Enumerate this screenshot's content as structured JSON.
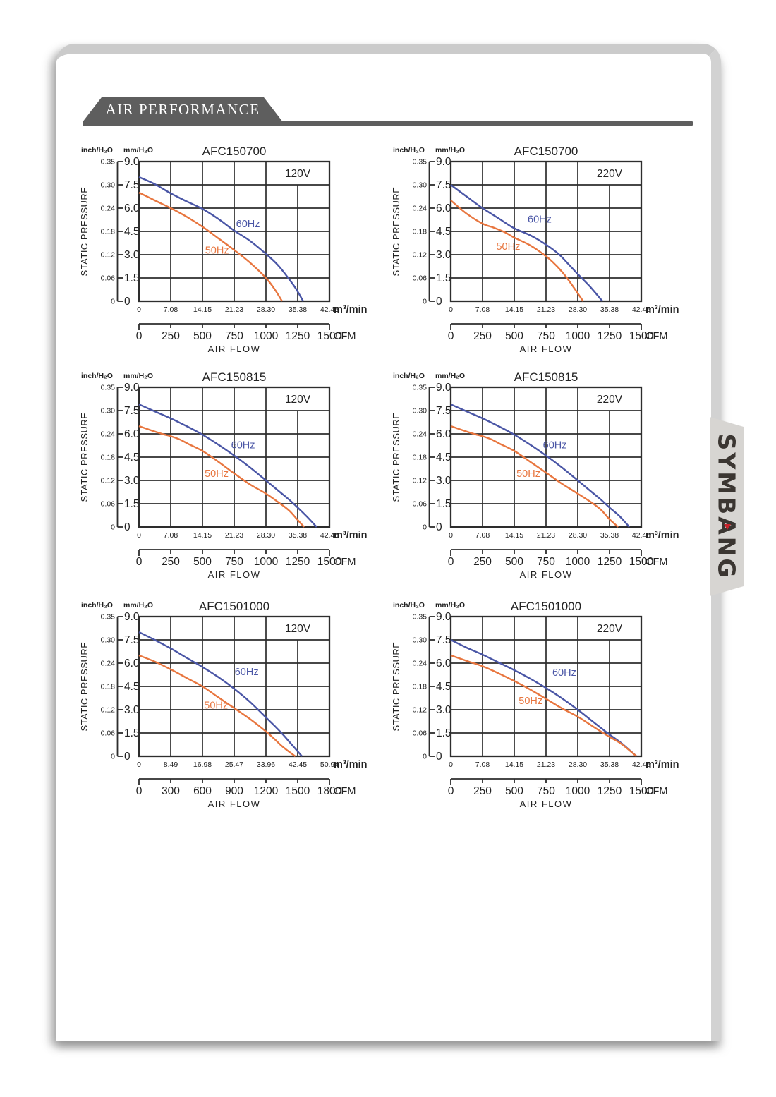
{
  "header": {
    "title": "AIR PERFORMANCE"
  },
  "logo": {
    "text": "SYMBANG"
  },
  "colors": {
    "hz60": "#4a56a6",
    "hz50": "#e8763f",
    "grid": "#2d2d2d",
    "text": "#222222",
    "banner": "#5e5e5e"
  },
  "chart_common": {
    "pressure_unit_inch": "inch/H₂O",
    "pressure_unit_mm": "mm/H₂O",
    "y_axis_label": "STATIC PRESSURE",
    "x_axis_label": "AIR FLOW",
    "flow_unit_metric": "m³/min",
    "flow_unit_cfm": "CFM",
    "inch_ticks": [
      "0.35",
      "0.30",
      "0.24",
      "0.18",
      "0.12",
      "0.06",
      "0"
    ],
    "mm_ticks": [
      "9.0",
      "7.5",
      "6.0",
      "4.5",
      "3.0",
      "1.5",
      "0"
    ]
  },
  "chart_data": [
    {
      "type": "line",
      "title": "AFC150700",
      "voltage": "120V",
      "x_max_m3": 42.45,
      "ylim_mm": [
        0,
        9
      ],
      "x_ticks_m3": [
        "0",
        "7.08",
        "14.15",
        "21.23",
        "28.30",
        "35.38",
        "42.45"
      ],
      "x_ticks_cfm": [
        "0",
        "250",
        "500",
        "750",
        "1000",
        "1250",
        "1500"
      ],
      "series": [
        {
          "name": "60Hz",
          "color_key": "hz60",
          "label_pos": [
            24.3,
            5.0
          ],
          "points_m3_mm": [
            [
              0,
              8.0
            ],
            [
              3.5,
              7.55
            ],
            [
              7.08,
              6.95
            ],
            [
              10.5,
              6.45
            ],
            [
              14.15,
              5.95
            ],
            [
              17.7,
              5.3
            ],
            [
              21.23,
              4.55
            ],
            [
              24.7,
              3.9
            ],
            [
              28.3,
              3.05
            ],
            [
              30.9,
              2.35
            ],
            [
              33.0,
              1.6
            ],
            [
              35.0,
              0.8
            ],
            [
              36.6,
              0
            ]
          ]
        },
        {
          "name": "50Hz",
          "color_key": "hz50",
          "label_pos": [
            17.4,
            3.3
          ],
          "points_m3_mm": [
            [
              0,
              7.0
            ],
            [
              3.5,
              6.5
            ],
            [
              7.08,
              6.0
            ],
            [
              10.6,
              5.45
            ],
            [
              14.15,
              4.8
            ],
            [
              17.7,
              4.05
            ],
            [
              21.23,
              3.3
            ],
            [
              24.7,
              2.5
            ],
            [
              28.3,
              1.5
            ],
            [
              30.3,
              0.75
            ],
            [
              31.9,
              0
            ]
          ]
        }
      ]
    },
    {
      "type": "line",
      "title": "AFC150700",
      "voltage": "220V",
      "x_max_m3": 42.45,
      "ylim_mm": [
        0,
        9
      ],
      "x_ticks_m3": [
        "0",
        "7.08",
        "14.15",
        "21.23",
        "28.30",
        "35.38",
        "42.45"
      ],
      "x_ticks_cfm": [
        "0",
        "250",
        "500",
        "750",
        "1000",
        "1250",
        "1500"
      ],
      "series": [
        {
          "name": "60Hz",
          "color_key": "hz60",
          "label_pos": [
            19.8,
            5.3
          ],
          "points_m3_mm": [
            [
              0,
              7.5
            ],
            [
              3.5,
              6.75
            ],
            [
              7.08,
              6.0
            ],
            [
              10.6,
              5.35
            ],
            [
              14.15,
              4.7
            ],
            [
              17.7,
              4.25
            ],
            [
              21.23,
              3.65
            ],
            [
              24.0,
              3.05
            ],
            [
              26.2,
              2.4
            ],
            [
              28.3,
              1.75
            ],
            [
              31.0,
              0.95
            ],
            [
              33.8,
              0
            ]
          ]
        },
        {
          "name": "50Hz",
          "color_key": "hz50",
          "label_pos": [
            12.8,
            3.55
          ],
          "points_m3_mm": [
            [
              0,
              6.5
            ],
            [
              3.5,
              5.65
            ],
            [
              7.08,
              5.0
            ],
            [
              9.5,
              4.75
            ],
            [
              12.0,
              4.45
            ],
            [
              14.15,
              4.1
            ],
            [
              17.7,
              3.6
            ],
            [
              21.23,
              2.9
            ],
            [
              23.5,
              2.3
            ],
            [
              25.5,
              1.65
            ],
            [
              27.5,
              0.85
            ],
            [
              29.5,
              0
            ]
          ]
        }
      ]
    },
    {
      "type": "line",
      "title": "AFC150815",
      "voltage": "120V",
      "x_max_m3": 42.45,
      "ylim_mm": [
        0,
        9
      ],
      "x_ticks_m3": [
        "0",
        "7.08",
        "14.15",
        "21.23",
        "28.30",
        "35.38",
        "42.45"
      ],
      "x_ticks_cfm": [
        "0",
        "250",
        "500",
        "750",
        "1000",
        "1250",
        "1500"
      ],
      "series": [
        {
          "name": "60Hz",
          "color_key": "hz60",
          "label_pos": [
            23.2,
            5.3
          ],
          "points_m3_mm": [
            [
              0,
              7.9
            ],
            [
              3.5,
              7.45
            ],
            [
              7.08,
              7.0
            ],
            [
              10.6,
              6.5
            ],
            [
              14.15,
              5.95
            ],
            [
              17.7,
              5.3
            ],
            [
              21.23,
              4.6
            ],
            [
              24.7,
              3.85
            ],
            [
              28.3,
              3.0
            ],
            [
              31.0,
              2.35
            ],
            [
              33.5,
              1.75
            ],
            [
              35.38,
              1.25
            ],
            [
              37.5,
              0.65
            ],
            [
              39.6,
              0
            ]
          ]
        },
        {
          "name": "50Hz",
          "color_key": "hz50",
          "label_pos": [
            17.3,
            3.45
          ],
          "points_m3_mm": [
            [
              0,
              6.5
            ],
            [
              3.0,
              6.2
            ],
            [
              5.5,
              5.97
            ],
            [
              7.08,
              5.85
            ],
            [
              9.0,
              5.65
            ],
            [
              11.0,
              5.35
            ],
            [
              14.15,
              4.9
            ],
            [
              17.7,
              4.2
            ],
            [
              21.23,
              3.45
            ],
            [
              24.7,
              2.75
            ],
            [
              28.3,
              2.15
            ],
            [
              31.5,
              1.5
            ],
            [
              33.5,
              1.05
            ],
            [
              35.38,
              0.45
            ],
            [
              36.8,
              0
            ]
          ]
        }
      ]
    },
    {
      "type": "line",
      "title": "AFC150815",
      "voltage": "220V",
      "x_max_m3": 42.45,
      "ylim_mm": [
        0,
        9
      ],
      "x_ticks_m3": [
        "0",
        "7.08",
        "14.15",
        "21.23",
        "28.30",
        "35.38",
        "42.45"
      ],
      "x_ticks_cfm": [
        "0",
        "250",
        "500",
        "750",
        "1000",
        "1250",
        "1500"
      ],
      "series": [
        {
          "name": "60Hz",
          "color_key": "hz60",
          "label_pos": [
            23.2,
            5.3
          ],
          "points_m3_mm": [
            [
              0,
              7.9
            ],
            [
              3.5,
              7.45
            ],
            [
              7.08,
              7.0
            ],
            [
              10.6,
              6.5
            ],
            [
              14.15,
              5.95
            ],
            [
              17.7,
              5.3
            ],
            [
              21.23,
              4.6
            ],
            [
              24.7,
              3.85
            ],
            [
              28.3,
              3.0
            ],
            [
              31.0,
              2.35
            ],
            [
              33.5,
              1.75
            ],
            [
              35.38,
              1.25
            ],
            [
              37.6,
              0.7
            ],
            [
              39.8,
              0
            ]
          ]
        },
        {
          "name": "50Hz",
          "color_key": "hz50",
          "label_pos": [
            17.3,
            3.45
          ],
          "points_m3_mm": [
            [
              0,
              6.5
            ],
            [
              3.0,
              6.2
            ],
            [
              5.5,
              5.97
            ],
            [
              7.08,
              5.85
            ],
            [
              9.0,
              5.65
            ],
            [
              11.0,
              5.35
            ],
            [
              14.15,
              4.9
            ],
            [
              17.7,
              4.2
            ],
            [
              21.23,
              3.5
            ],
            [
              24.7,
              2.8
            ],
            [
              28.3,
              2.15
            ],
            [
              31.5,
              1.55
            ],
            [
              33.5,
              1.1
            ],
            [
              35.38,
              0.5
            ],
            [
              37.3,
              0
            ]
          ]
        }
      ]
    },
    {
      "type": "line",
      "title": "AFC1501000",
      "voltage": "120V",
      "x_max_m3": 50.94,
      "ylim_mm": [
        0,
        9
      ],
      "x_ticks_m3": [
        "0",
        "8.49",
        "16.98",
        "25.47",
        "33.96",
        "42.45",
        "50.94"
      ],
      "x_ticks_cfm": [
        "0",
        "300",
        "600",
        "900",
        "1200",
        "1500",
        "1800"
      ],
      "series": [
        {
          "name": "60Hz",
          "color_key": "hz60",
          "label_pos": [
            28.8,
            5.45
          ],
          "points_m3_mm": [
            [
              0,
              8.0
            ],
            [
              4.2,
              7.5
            ],
            [
              8.49,
              6.95
            ],
            [
              12.7,
              6.35
            ],
            [
              16.98,
              5.75
            ],
            [
              21.2,
              5.1
            ],
            [
              25.47,
              4.35
            ],
            [
              29.7,
              3.5
            ],
            [
              33.96,
              2.5
            ],
            [
              36.5,
              1.9
            ],
            [
              38.5,
              1.4
            ],
            [
              40.5,
              0.85
            ],
            [
              43.6,
              0
            ]
          ]
        },
        {
          "name": "50Hz",
          "color_key": "hz50",
          "label_pos": [
            20.6,
            3.3
          ],
          "points_m3_mm": [
            [
              0,
              6.5
            ],
            [
              4.2,
              6.1
            ],
            [
              8.49,
              5.6
            ],
            [
              12.7,
              5.05
            ],
            [
              16.98,
              4.5
            ],
            [
              21.2,
              3.8
            ],
            [
              25.47,
              3.1
            ],
            [
              29.7,
              2.4
            ],
            [
              33.96,
              1.6
            ],
            [
              36.5,
              1.05
            ],
            [
              38.5,
              0.6
            ],
            [
              41.8,
              0
            ]
          ]
        }
      ]
    },
    {
      "type": "line",
      "title": "AFC1501000",
      "voltage": "220V",
      "x_max_m3": 42.45,
      "ylim_mm": [
        0,
        9
      ],
      "x_ticks_m3": [
        "0",
        "7.08",
        "14.15",
        "21.23",
        "28.30",
        "35.38",
        "42.45"
      ],
      "x_ticks_cfm": [
        "0",
        "250",
        "500",
        "750",
        "1000",
        "1250",
        "1500"
      ],
      "series": [
        {
          "name": "60Hz",
          "color_key": "hz60",
          "label_pos": [
            25.3,
            5.4
          ],
          "points_m3_mm": [
            [
              0,
              7.5
            ],
            [
              3.5,
              7.0
            ],
            [
              7.08,
              6.55
            ],
            [
              10.6,
              6.05
            ],
            [
              14.15,
              5.55
            ],
            [
              17.7,
              5.0
            ],
            [
              21.23,
              4.4
            ],
            [
              24.7,
              3.75
            ],
            [
              28.3,
              3.0
            ],
            [
              31.8,
              2.2
            ],
            [
              35.38,
              1.4
            ],
            [
              38.0,
              0.85
            ],
            [
              41.4,
              0
            ]
          ]
        },
        {
          "name": "50Hz",
          "color_key": "hz50",
          "label_pos": [
            17.8,
            3.6
          ],
          "points_m3_mm": [
            [
              0,
              6.5
            ],
            [
              3.5,
              6.15
            ],
            [
              7.08,
              5.8
            ],
            [
              10.6,
              5.35
            ],
            [
              14.15,
              4.85
            ],
            [
              17.7,
              4.3
            ],
            [
              21.23,
              3.7
            ],
            [
              24.7,
              3.1
            ],
            [
              28.3,
              2.55
            ],
            [
              31.8,
              1.9
            ],
            [
              35.38,
              1.25
            ],
            [
              38.0,
              0.8
            ],
            [
              41.4,
              0
            ]
          ]
        }
      ]
    }
  ]
}
